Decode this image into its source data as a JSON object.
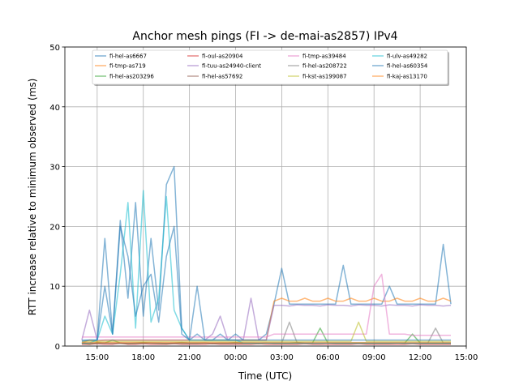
{
  "chart_data": {
    "type": "line",
    "title": "Anchor mesh pings (FI -> de-mai-as2857) IPv4",
    "xlabel": "Time (UTC)",
    "ylabel": "RTT increase relative to minimum observed (ms)",
    "x_unit": "hours since 00:00 of first day",
    "xlim": [
      12.9,
      39.0
    ],
    "ylim": [
      0,
      50
    ],
    "grid": true,
    "legend_placement": "top-center",
    "x_ticks": [
      {
        "value": 15,
        "label": "15:00"
      },
      {
        "value": 18,
        "label": "18:00"
      },
      {
        "value": 21,
        "label": "21:00"
      },
      {
        "value": 24,
        "label": "00:00"
      },
      {
        "value": 27,
        "label": "03:00"
      },
      {
        "value": 30,
        "label": "06:00"
      },
      {
        "value": 33,
        "label": "09:00"
      },
      {
        "value": 36,
        "label": "12:00"
      },
      {
        "value": 39,
        "label": "15:00"
      }
    ],
    "y_ticks": [
      {
        "value": 0,
        "label": "0"
      },
      {
        "value": 10,
        "label": "10"
      },
      {
        "value": 20,
        "label": "20"
      },
      {
        "value": 30,
        "label": "30"
      },
      {
        "value": 40,
        "label": "40"
      },
      {
        "value": 50,
        "label": "50"
      }
    ],
    "x_start": 14.0,
    "x_step": 0.5,
    "series": [
      {
        "name": "fi-hel-as6667",
        "color": "#1f77b4",
        "values": [
          1,
          1,
          1,
          18,
          2,
          21,
          8,
          24,
          5,
          18,
          6,
          27,
          30,
          3,
          1,
          2,
          1,
          1,
          2,
          1,
          2,
          1,
          1,
          1,
          2,
          7,
          13,
          7,
          7,
          7,
          7,
          7,
          7,
          7,
          13.5,
          7,
          7,
          7,
          7,
          7,
          10,
          7,
          7,
          7,
          7,
          7,
          7,
          17,
          7
        ]
      },
      {
        "name": "fi-tmp-as719",
        "color": "#ff7f0e",
        "values": [
          0.5,
          1,
          0.8,
          1,
          1,
          1,
          1,
          1,
          1,
          1,
          1,
          1,
          1,
          1,
          1,
          1,
          1,
          1,
          1,
          1,
          1,
          1,
          1,
          1,
          1,
          7.5,
          8,
          7.5,
          7.5,
          8,
          7.5,
          7.5,
          8,
          7.5,
          7.5,
          8,
          7.5,
          7.5,
          8,
          7.5,
          7.5,
          8,
          7.5,
          7.5,
          8,
          7.5,
          7.5,
          8,
          7.5
        ]
      },
      {
        "name": "fi-hel-as203296",
        "color": "#2ca02c",
        "values": [
          0.5,
          0.3,
          0.6,
          0.5,
          1,
          0.5,
          0.4,
          0.5,
          0.6,
          0.5,
          0.5,
          0.4,
          0.5,
          0.6,
          0.5,
          0.5,
          0.5,
          0.4,
          0.5,
          0.5,
          0.6,
          0.5,
          0.5,
          0.4,
          0.5,
          0.5,
          0.5,
          0.5,
          0.6,
          0.5,
          0.5,
          3,
          0.5,
          0.5,
          0.5,
          0.5,
          0.5,
          0.5,
          0.5,
          0.5,
          0.5,
          0.5,
          0.5,
          2,
          0.5,
          0.5,
          0.5,
          0.5,
          0.5
        ]
      },
      {
        "name": "fi-oul-as20904",
        "color": "#d62728",
        "values": [
          0.3,
          0.3,
          0.4,
          0.3,
          0.3,
          0.5,
          0.3,
          0.3,
          0.4,
          0.3,
          0.3,
          0.3,
          0.4,
          0.3,
          0.3,
          0.3,
          0.3,
          0.4,
          0.3,
          0.3,
          0.3,
          0.3,
          0.3,
          0.4,
          0.3,
          0.3,
          0.3,
          0.3,
          0.3,
          0.4,
          0.3,
          0.3,
          0.3,
          0.3,
          0.3,
          0.3,
          0.4,
          0.3,
          0.3,
          0.3,
          0.3,
          0.3,
          0.3,
          0.4,
          0.3,
          0.3,
          0.3,
          0.3,
          0.3
        ]
      },
      {
        "name": "fi-tuu-as24940-client",
        "color": "#9467bd",
        "values": [
          1,
          6,
          1,
          1,
          1,
          1,
          1,
          1,
          1,
          1,
          1,
          1,
          1,
          1,
          1,
          1,
          1,
          2,
          5,
          1,
          1,
          1,
          8,
          1,
          1,
          6.8,
          6.8,
          6.7,
          6.9,
          6.8,
          6.8,
          6.7,
          6.9,
          6.8,
          6.8,
          6.7,
          6.9,
          6.8,
          6.8,
          6.7,
          6.9,
          6.8,
          6.8,
          6.7,
          6.9,
          6.8,
          6.8,
          6.7,
          6.8
        ]
      },
      {
        "name": "fi-hel-as57692",
        "color": "#8c564b",
        "values": [
          0.4,
          0.4,
          0.4,
          0.5,
          0.4,
          0.4,
          0.4,
          0.4,
          0.4,
          0.5,
          0.4,
          0.4,
          0.4,
          0.4,
          0.4,
          0.4,
          0.5,
          0.4,
          0.4,
          0.4,
          0.4,
          0.4,
          0.4,
          0.4,
          0.5,
          0.4,
          0.4,
          0.4,
          0.4,
          0.4,
          0.4,
          0.4,
          0.5,
          0.4,
          0.4,
          0.4,
          0.4,
          0.4,
          0.4,
          0.4,
          0.4,
          0.5,
          0.4,
          0.4,
          0.4,
          0.4,
          0.4,
          0.4,
          0.4
        ]
      },
      {
        "name": "fi-tmp-as39484",
        "color": "#e377c2",
        "values": [
          1.5,
          1.5,
          1.5,
          1.5,
          1.5,
          1.5,
          1.5,
          1.5,
          1.5,
          1.5,
          1.5,
          1.5,
          1.5,
          1.5,
          1.5,
          1.5,
          1.5,
          1.5,
          1.5,
          1.5,
          1.5,
          1.5,
          1.5,
          1.5,
          1.5,
          2,
          2,
          2,
          2,
          2,
          2,
          2,
          2,
          2,
          2,
          2,
          2,
          2,
          10,
          12,
          2,
          2,
          2,
          1.8,
          1.8,
          1.8,
          1.8,
          1.8,
          1.8
        ]
      },
      {
        "name": "fi-hel-as208722",
        "color": "#7f7f7f",
        "values": [
          0.5,
          0.5,
          0.5,
          0.5,
          0.5,
          0.5,
          0.5,
          0.5,
          0.5,
          0.5,
          0.5,
          0.5,
          0.5,
          0.5,
          0.5,
          0.5,
          0.5,
          0.5,
          0.5,
          0.5,
          0.5,
          0.5,
          0.5,
          0.5,
          0.5,
          0.5,
          0.5,
          4,
          0.5,
          0.5,
          0.5,
          0.5,
          0.5,
          0.5,
          0.5,
          0.5,
          0.5,
          0.5,
          0.5,
          0.5,
          0.5,
          0.5,
          0.5,
          0.5,
          0.5,
          0.5,
          3,
          0.5,
          0.5
        ]
      },
      {
        "name": "fi-kst-as199087",
        "color": "#bcbd22",
        "values": [
          0.8,
          0.8,
          0.8,
          0.8,
          0.8,
          0.8,
          0.8,
          0.8,
          0.8,
          0.8,
          0.8,
          0.8,
          0.8,
          0.8,
          0.8,
          0.8,
          0.8,
          0.8,
          0.8,
          0.8,
          0.8,
          0.8,
          0.8,
          0.8,
          0.8,
          0.8,
          0.8,
          0.8,
          0.8,
          0.8,
          0.8,
          0.8,
          0.8,
          0.8,
          0.8,
          0.8,
          4,
          0.8,
          0.8,
          0.8,
          0.8,
          0.8,
          0.8,
          0.8,
          0.8,
          0.8,
          0.8,
          0.8,
          0.8
        ]
      },
      {
        "name": "fi-ulv-as49282",
        "color": "#17becf",
        "values": [
          0.5,
          0.5,
          1,
          5,
          2,
          12,
          24,
          3,
          26,
          4,
          8,
          25,
          6,
          3,
          1,
          1,
          1,
          1,
          1,
          1,
          1,
          0.5,
          0.5,
          0.5,
          0.5,
          0.5,
          0.5,
          0.5,
          0.5,
          0.5,
          0.5,
          0.5,
          0.5,
          0.5,
          0.5,
          0.5,
          0.5,
          0.5,
          0.5,
          0.5,
          0.5,
          0.5,
          0.5,
          0.5,
          0.5,
          0.5,
          0.5,
          0.5,
          0.5
        ]
      },
      {
        "name": "fi-hel-as60354",
        "color": "#1f77b4",
        "values": [
          0.8,
          1,
          1,
          10,
          2,
          20,
          15,
          5,
          10,
          12,
          4,
          15,
          20,
          2,
          1,
          10,
          1,
          1,
          1,
          1,
          1,
          1,
          1,
          1,
          1,
          1,
          1,
          1,
          1,
          1,
          1,
          1,
          1,
          1,
          1,
          1,
          1,
          1,
          1,
          1,
          1,
          1,
          1,
          1,
          1,
          1,
          1,
          1,
          1
        ]
      },
      {
        "name": "fi-kaj-as13170",
        "color": "#ff7f0e",
        "values": [
          0.6,
          0.6,
          0.6,
          0.6,
          0.6,
          0.6,
          0.6,
          0.6,
          0.6,
          0.6,
          0.6,
          0.6,
          0.6,
          0.6,
          0.6,
          0.6,
          0.6,
          0.6,
          0.6,
          0.6,
          0.6,
          0.6,
          0.6,
          0.6,
          0.6,
          0.6,
          0.6,
          0.6,
          0.6,
          0.6,
          0.6,
          0.6,
          0.6,
          0.6,
          0.6,
          0.6,
          0.6,
          0.6,
          0.6,
          0.6,
          0.6,
          0.6,
          0.6,
          0.6,
          0.6,
          0.6,
          0.6,
          0.6,
          0.6
        ]
      }
    ]
  }
}
